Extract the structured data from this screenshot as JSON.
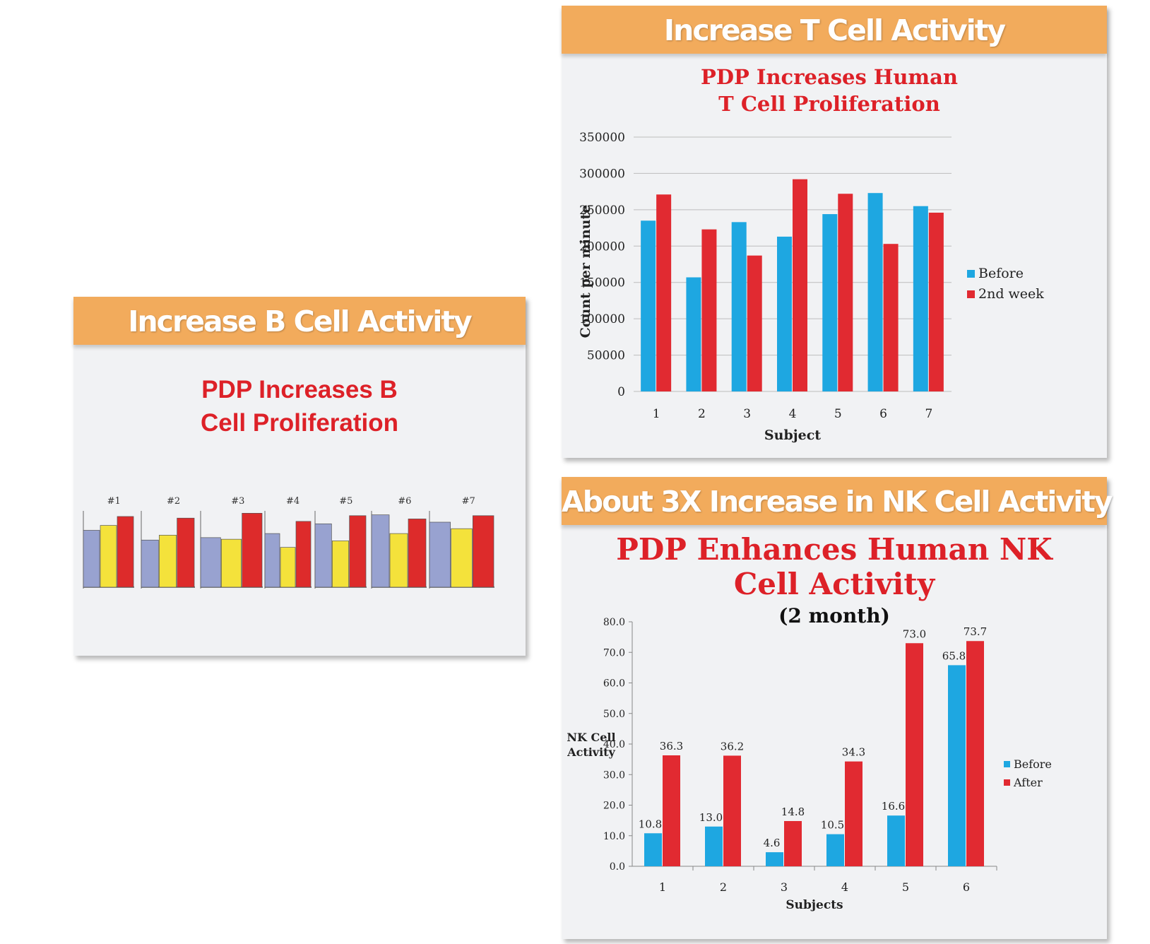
{
  "b_panel": {
    "banner": "Increase B Cell Activity",
    "title_line1": "PDP Increases B",
    "title_line2": "Cell Proliferation"
  },
  "t_panel": {
    "banner": "Increase T Cell Activity",
    "title_line1": "PDP Increases Human",
    "title_line2": "T Cell Proliferation"
  },
  "nk_panel": {
    "banner": "About 3X Increase in NK Cell Activity",
    "title_line1": "PDP Enhances Human NK",
    "title_line2": "Cell Activity",
    "subtitle": "(2 month)"
  },
  "chart_data": [
    {
      "id": "b_cell",
      "type": "bar",
      "categories": [
        "#1",
        "#2",
        "#3",
        "#4",
        "#5",
        "#6",
        "#7"
      ],
      "series": [
        {
          "color": "#98a2d0",
          "values": [
            70,
            58,
            61,
            66,
            78,
            89,
            80
          ]
        },
        {
          "color": "#f4e23b",
          "values": [
            76,
            64,
            59,
            49,
            57,
            66,
            72
          ]
        },
        {
          "color": "#dd2b2b",
          "values": [
            87,
            85,
            91,
            81,
            88,
            84,
            88
          ]
        }
      ],
      "ylim": [
        0,
        100
      ],
      "grid": false,
      "legend": "none"
    },
    {
      "id": "t_cell",
      "type": "bar",
      "categories": [
        "1",
        "2",
        "3",
        "4",
        "5",
        "6",
        "7"
      ],
      "series": [
        {
          "name": "Before",
          "color": "#1ea7e1",
          "values": [
            235000,
            157000,
            233000,
            213000,
            244000,
            273000,
            255000
          ]
        },
        {
          "name": "2nd week",
          "color": "#e12a31",
          "values": [
            271000,
            223000,
            187000,
            292000,
            272000,
            203000,
            246000
          ]
        }
      ],
      "xlabel": "Subject",
      "ylabel": "Count per minute",
      "ylim": [
        0,
        350000
      ],
      "yticks": [
        "0",
        "50000",
        "100000",
        "150000",
        "200000",
        "250000",
        "300000",
        "350000"
      ],
      "grid": true,
      "legend": "right"
    },
    {
      "id": "nk_cell",
      "type": "bar",
      "categories": [
        "1",
        "2",
        "3",
        "4",
        "5",
        "6"
      ],
      "series": [
        {
          "name": "Before",
          "color": "#1ea7e1",
          "values": [
            10.8,
            13.0,
            4.6,
            10.5,
            16.6,
            65.8
          ]
        },
        {
          "name": "After",
          "color": "#e12a31",
          "values": [
            36.3,
            36.2,
            14.8,
            34.3,
            73.0,
            73.7
          ]
        }
      ],
      "data_labels": {
        "Before": [
          "10.8",
          "13.0",
          "4.6",
          "10.5",
          "16.6",
          "65.8"
        ],
        "After": [
          "36.3",
          "36.2",
          "14.8",
          "34.3",
          "73.0",
          "73.7"
        ]
      },
      "xlabel": "Subjects",
      "ylabel_line1": "NK Cell",
      "ylabel_line2": "Activity",
      "ylim": [
        0,
        80
      ],
      "yticks": [
        "0.0",
        "10.0",
        "20.0",
        "30.0",
        "40.0",
        "50.0",
        "60.0",
        "70.0",
        "80.0"
      ],
      "grid": false,
      "legend": "right"
    }
  ]
}
